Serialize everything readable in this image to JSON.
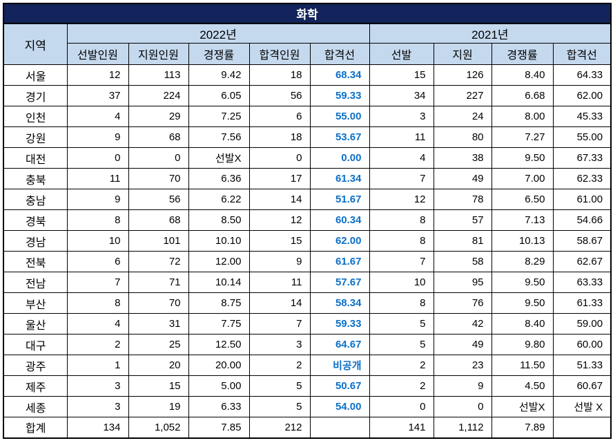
{
  "title": "화학",
  "colors": {
    "title_bg": "#13235B",
    "title_text": "#FFFFFF",
    "header_bg": "#C5D9EE",
    "passline_text": "#0C70C8",
    "border": "#000000"
  },
  "table": {
    "region_header": "지역",
    "year_groups": [
      {
        "label": "2022년",
        "columns": [
          "선발인원",
          "지원인원",
          "경쟁률",
          "합격인원",
          "합격선"
        ]
      },
      {
        "label": "2021년",
        "columns": [
          "선발",
          "지원",
          "경쟁률",
          "합격선"
        ]
      }
    ],
    "rows": [
      {
        "region": "서울",
        "cells": [
          "12",
          "113",
          "9.42",
          "18",
          "68.34",
          "15",
          "126",
          "8.40",
          "64.33"
        ]
      },
      {
        "region": "경기",
        "cells": [
          "37",
          "224",
          "6.05",
          "56",
          "59.33",
          "34",
          "227",
          "6.68",
          "62.00"
        ]
      },
      {
        "region": "인천",
        "cells": [
          "4",
          "29",
          "7.25",
          "6",
          "55.00",
          "3",
          "24",
          "8.00",
          "45.33"
        ]
      },
      {
        "region": "강원",
        "cells": [
          "9",
          "68",
          "7.56",
          "18",
          "53.67",
          "11",
          "80",
          "7.27",
          "55.00"
        ]
      },
      {
        "region": "대전",
        "cells": [
          "0",
          "0",
          "선발X",
          "0",
          "0.00",
          "4",
          "38",
          "9.50",
          "67.33"
        ]
      },
      {
        "region": "충북",
        "cells": [
          "11",
          "70",
          "6.36",
          "17",
          "61.34",
          "7",
          "49",
          "7.00",
          "62.33"
        ]
      },
      {
        "region": "충남",
        "cells": [
          "9",
          "56",
          "6.22",
          "14",
          "51.67",
          "12",
          "78",
          "6.50",
          "61.00"
        ]
      },
      {
        "region": "경북",
        "cells": [
          "8",
          "68",
          "8.50",
          "12",
          "60.34",
          "8",
          "57",
          "7.13",
          "54.66"
        ]
      },
      {
        "region": "경남",
        "cells": [
          "10",
          "101",
          "10.10",
          "15",
          "62.00",
          "8",
          "81",
          "10.13",
          "58.67"
        ]
      },
      {
        "region": "전북",
        "cells": [
          "6",
          "72",
          "12.00",
          "9",
          "61.67",
          "7",
          "58",
          "8.29",
          "62.67"
        ]
      },
      {
        "region": "전남",
        "cells": [
          "7",
          "71",
          "10.14",
          "11",
          "57.67",
          "10",
          "95",
          "9.50",
          "63.33"
        ]
      },
      {
        "region": "부산",
        "cells": [
          "8",
          "70",
          "8.75",
          "14",
          "58.34",
          "8",
          "76",
          "9.50",
          "61.33"
        ]
      },
      {
        "region": "울산",
        "cells": [
          "4",
          "31",
          "7.75",
          "7",
          "59.33",
          "5",
          "42",
          "8.40",
          "59.00"
        ]
      },
      {
        "region": "대구",
        "cells": [
          "2",
          "25",
          "12.50",
          "3",
          "64.67",
          "5",
          "49",
          "9.80",
          "60.00"
        ]
      },
      {
        "region": "광주",
        "cells": [
          "1",
          "20",
          "20.00",
          "2",
          "비공개",
          "2",
          "23",
          "11.50",
          "51.33"
        ]
      },
      {
        "region": "제주",
        "cells": [
          "3",
          "15",
          "5.00",
          "5",
          "50.67",
          "2",
          "9",
          "4.50",
          "60.67"
        ]
      },
      {
        "region": "세종",
        "cells": [
          "3",
          "19",
          "6.33",
          "5",
          "54.00",
          "0",
          "0",
          "선발X",
          "선발 X"
        ]
      },
      {
        "region": "합계",
        "cells": [
          "134",
          "1,052",
          "7.85",
          "212",
          "",
          "141",
          "1,112",
          "7.89",
          ""
        ]
      }
    ]
  }
}
